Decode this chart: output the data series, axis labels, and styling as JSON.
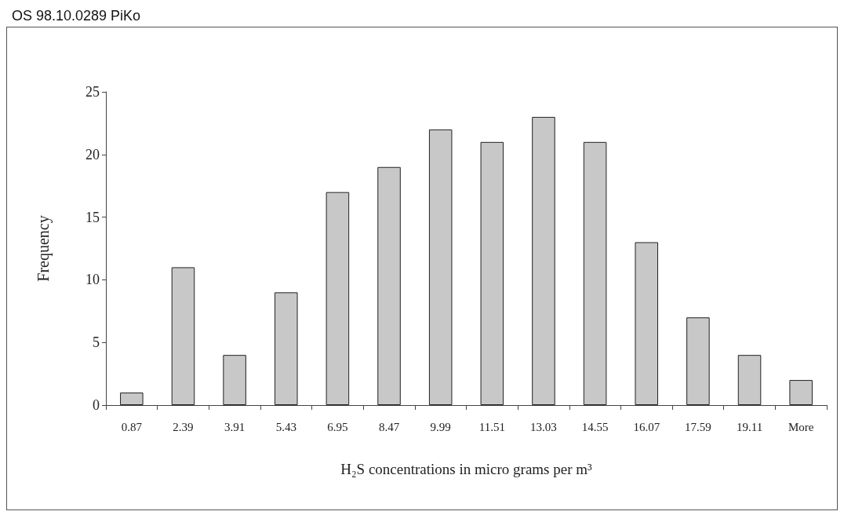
{
  "chart_data": {
    "type": "bar",
    "title": "OS 98.10.0289 PiKo",
    "xlabel": "H₂S concentrations in micro grams per m³",
    "ylabel": "Frequency",
    "categories": [
      "0.87",
      "2.39",
      "3.91",
      "5.43",
      "6.95",
      "8.47",
      "9.99",
      "11.51",
      "13.03",
      "14.55",
      "16.07",
      "17.59",
      "19.11",
      "More"
    ],
    "values": [
      1,
      11,
      4,
      9,
      17,
      19,
      22,
      21,
      23,
      21,
      13,
      7,
      4,
      2
    ],
    "color": "#c8c8c8",
    "ylim": [
      0,
      25
    ],
    "yticks": [
      0,
      5,
      10,
      15,
      20,
      25
    ],
    "grid": false
  }
}
